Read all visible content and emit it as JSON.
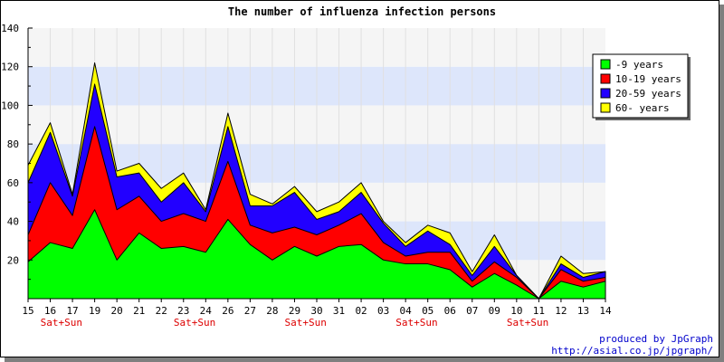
{
  "chart_data": {
    "type": "area",
    "stacked": true,
    "title": "The number of influenza infection persons",
    "categories": [
      "15",
      "16",
      "17",
      "19",
      "20",
      "21",
      "22",
      "23",
      "24",
      "26",
      "27",
      "28",
      "29",
      "30",
      "31",
      "02",
      "03",
      "04",
      "05",
      "06",
      "07",
      "09",
      "10",
      "11",
      "12",
      "13",
      "14"
    ],
    "weekend_marker_label": "Sat+Sun",
    "weekend_marker_after": [
      "16",
      "23",
      "29",
      "04",
      "10"
    ],
    "ylim": [
      0,
      140
    ],
    "yticks": [
      20,
      40,
      60,
      80,
      100,
      120,
      140
    ],
    "grid": true,
    "legend_position": "right",
    "series": [
      {
        "name": "-9 years",
        "color": "#00ff00",
        "values": [
          19,
          29,
          26,
          46,
          20,
          34,
          26,
          27,
          24,
          41,
          28,
          20,
          27,
          22,
          27,
          28,
          20,
          18,
          18,
          15,
          6,
          13,
          7,
          0,
          9,
          6,
          9
        ]
      },
      {
        "name": "10-19 years",
        "color": "#ff0000",
        "values": [
          14,
          31,
          17,
          43,
          26,
          19,
          14,
          17,
          16,
          30,
          10,
          14,
          10,
          11,
          11,
          16,
          9,
          4,
          6,
          9,
          3,
          6,
          4,
          0,
          6,
          3,
          2
        ]
      },
      {
        "name": "20-59 years",
        "color": "#2200ff",
        "values": [
          27,
          26,
          10,
          22,
          17,
          12,
          10,
          16,
          5,
          18,
          10,
          14,
          18,
          8,
          7,
          11,
          10,
          5,
          11,
          4,
          3,
          8,
          1,
          0,
          3,
          2,
          3
        ]
      },
      {
        "name": "60- years",
        "color": "#ffff00",
        "values": [
          9,
          5,
          1,
          11,
          3,
          5,
          7,
          5,
          1,
          7,
          6,
          1,
          3,
          4,
          5,
          5,
          1,
          2,
          3,
          6,
          2,
          6,
          0,
          0,
          4,
          2,
          0
        ]
      }
    ],
    "band_colors": [
      "#f5f5f5",
      "#dde6fb"
    ]
  },
  "credit": {
    "line1": "produced by JpGraph",
    "line2": "http://asial.co.jp/jpgraph/"
  }
}
